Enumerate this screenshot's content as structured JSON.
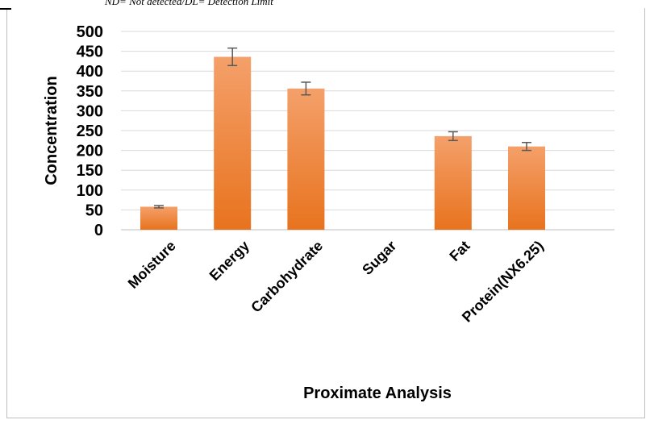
{
  "note": "ND= Not detected/DL= Detection Limit",
  "chart_data": {
    "type": "bar",
    "categories": [
      "Moisture",
      "Energy",
      "Carbohydrate",
      "Sugar",
      "Fat",
      "Protein(NX6.25)"
    ],
    "values": [
      58,
      436,
      356,
      0,
      236,
      210
    ],
    "errors": [
      3,
      22,
      16,
      0,
      11,
      10
    ],
    "xlabel": "Proximate Analysis",
    "ylabel": "Concentration",
    "ylim": [
      0,
      500
    ],
    "yticks": [
      "0",
      "50",
      "100",
      "150",
      "200",
      "250",
      "300",
      "350",
      "400",
      "450",
      "500"
    ],
    "grid": true,
    "legend": "none",
    "bar_color": "#ED7D31"
  }
}
